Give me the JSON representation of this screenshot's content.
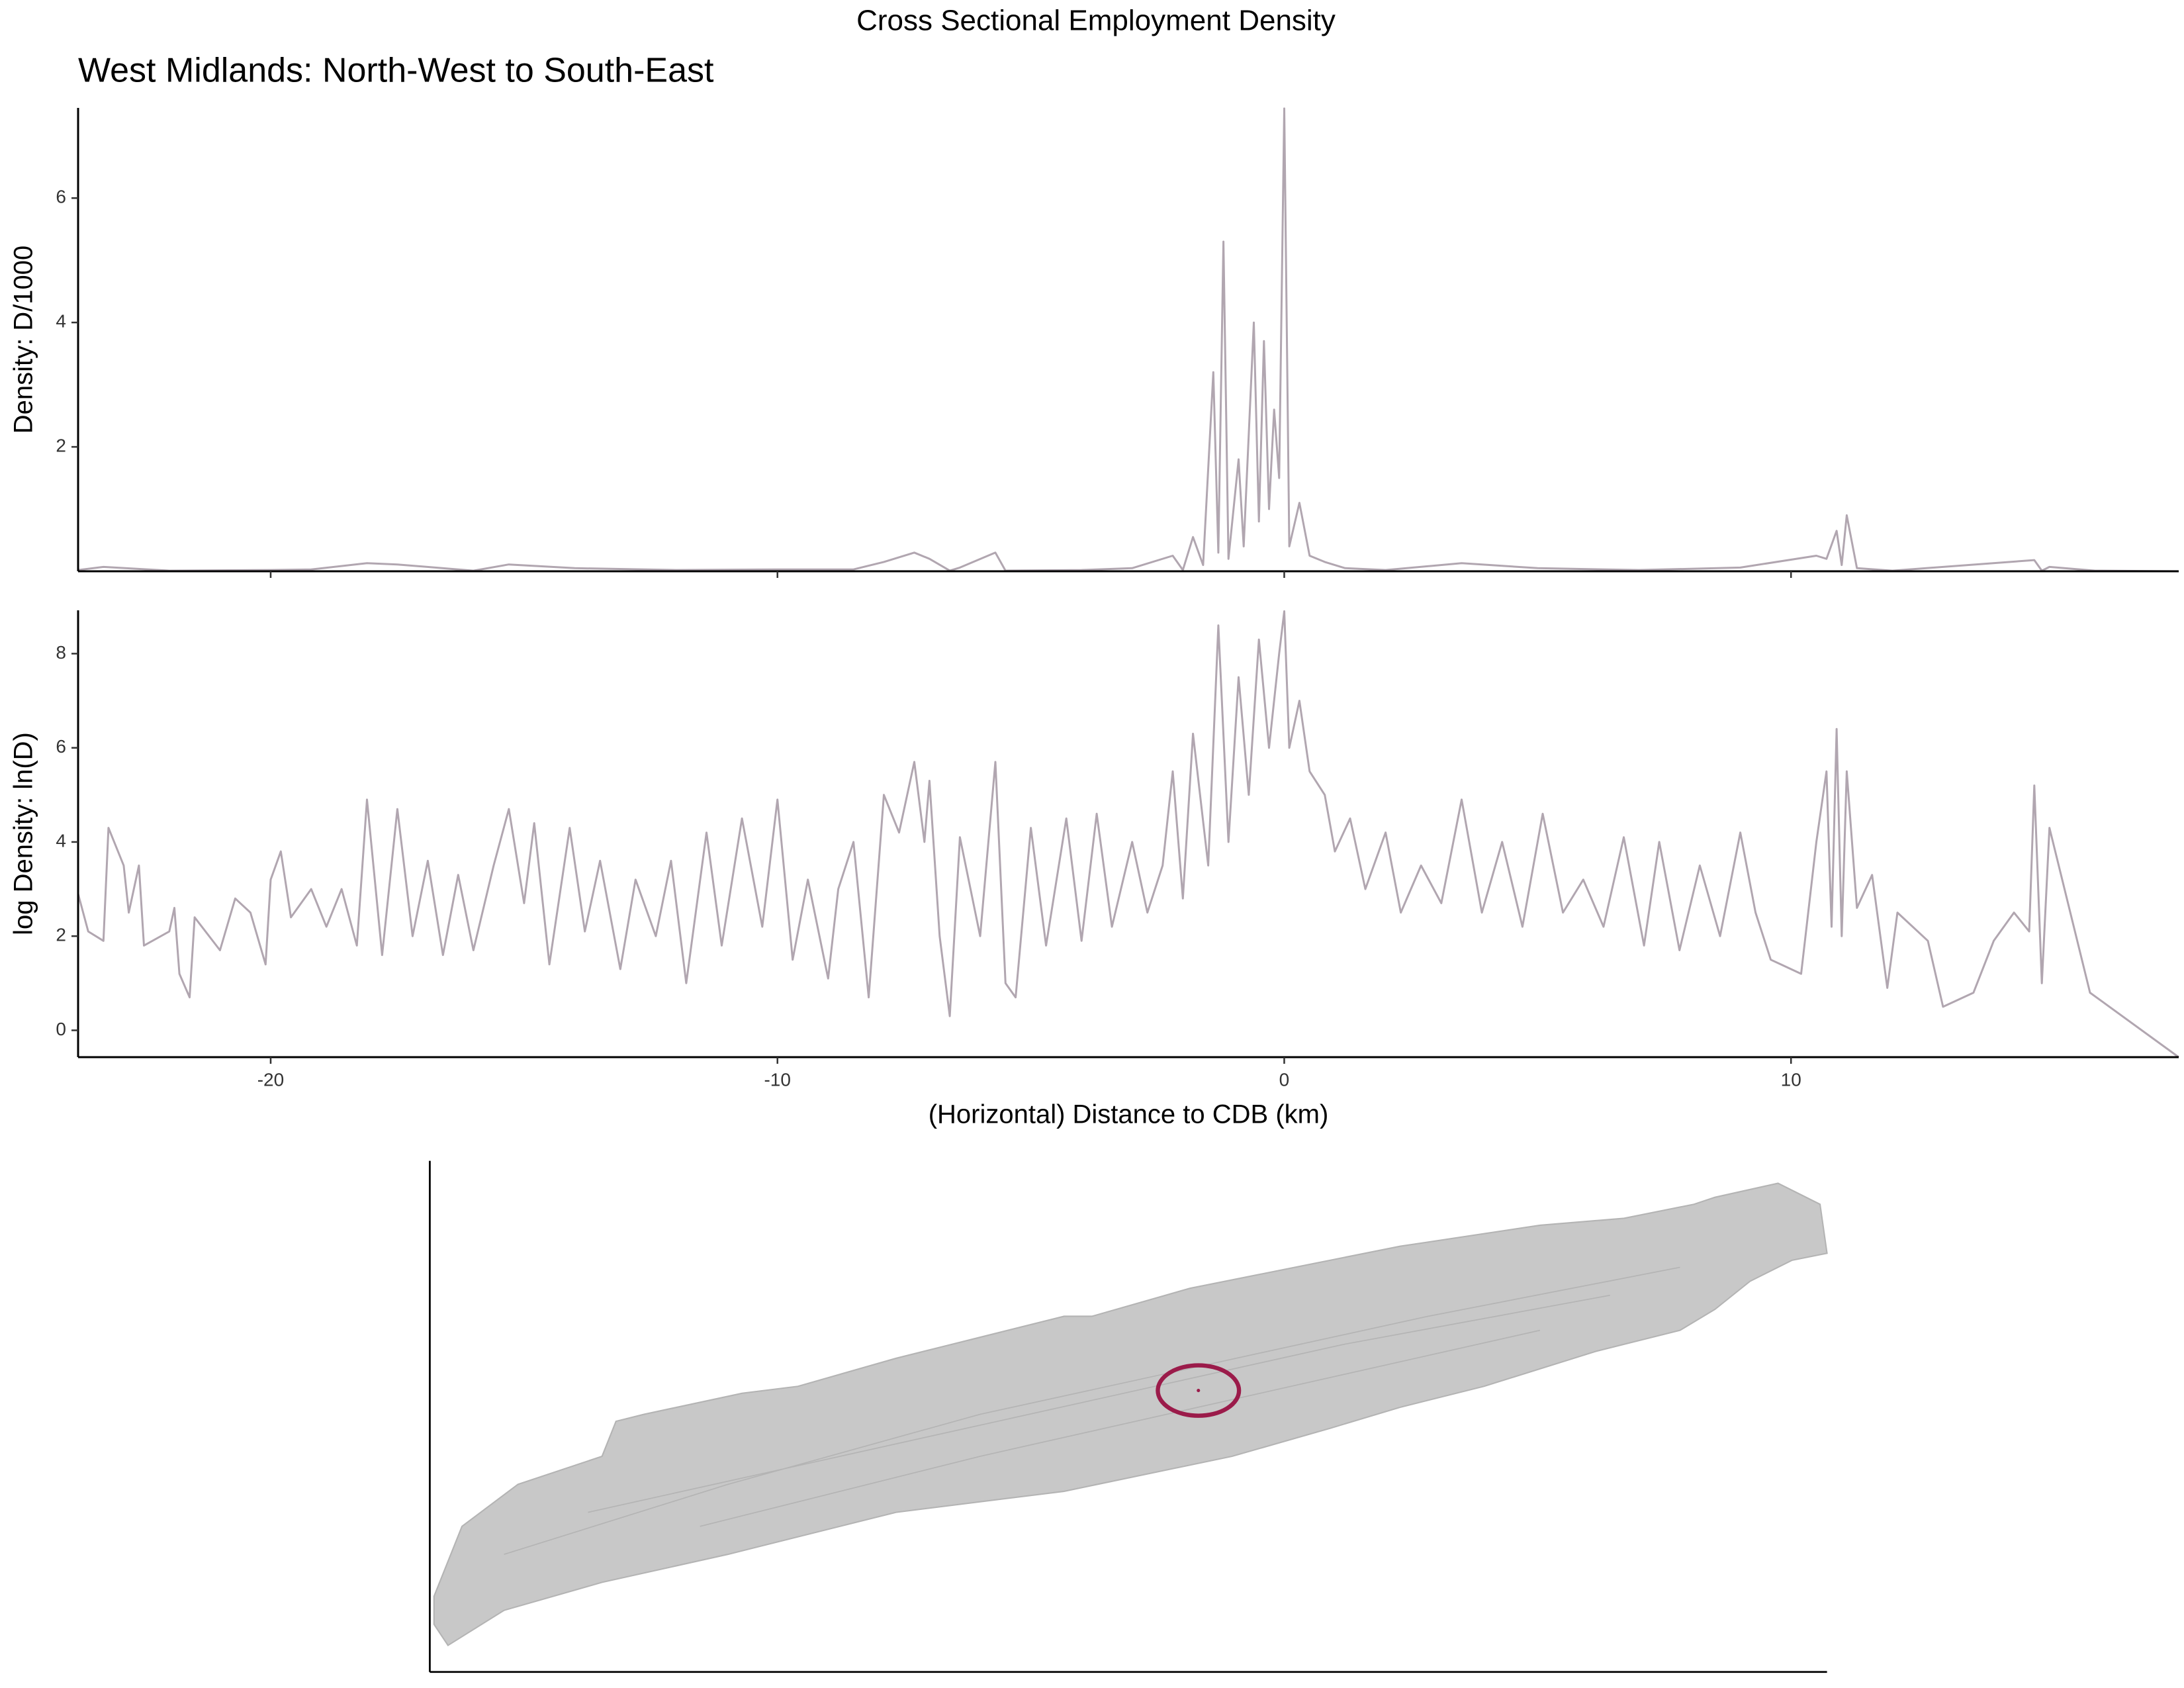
{
  "chart_data": [
    {
      "type": "line",
      "title": "Cross Sectional Employment Density",
      "subtitle": "West Midlands: North-West to South-East",
      "y_label": "Density: D/1000",
      "x": [
        -23.8,
        -23.3,
        -22,
        -20,
        -19.2,
        -18.1,
        -17.5,
        -16,
        -15.3,
        -14,
        -12,
        -10,
        -8.5,
        -7.9,
        -7.3,
        -7.0,
        -6.6,
        -6.4,
        -5.7,
        -5.5,
        -4,
        -3,
        -2.2,
        -2.0,
        -1.8,
        -1.6,
        -1.4,
        -1.3,
        -1.2,
        -1.1,
        -0.9,
        -0.8,
        -0.6,
        -0.5,
        -0.4,
        -0.3,
        -0.2,
        -0.1,
        0.0,
        0.1,
        0.3,
        0.5,
        0.8,
        1.2,
        2,
        3.5,
        5,
        7,
        9,
        10.5,
        10.7,
        10.9,
        11.0,
        11.1,
        11.3,
        12,
        14.8,
        14.95,
        15.1,
        16,
        17.65
      ],
      "values": [
        0.02,
        0.07,
        0.01,
        0.02,
        0.03,
        0.13,
        0.11,
        0.01,
        0.11,
        0.05,
        0.02,
        0.03,
        0.03,
        0.15,
        0.3,
        0.2,
        0.01,
        0.06,
        0.3,
        0.01,
        0.02,
        0.05,
        0.25,
        0.02,
        0.55,
        0.1,
        3.2,
        0.3,
        5.3,
        0.2,
        1.8,
        0.4,
        4.0,
        0.8,
        3.7,
        1.0,
        2.6,
        1.5,
        7.44,
        0.4,
        1.1,
        0.25,
        0.15,
        0.05,
        0.02,
        0.13,
        0.05,
        0.02,
        0.06,
        0.25,
        0.2,
        0.65,
        0.1,
        0.9,
        0.05,
        0.01,
        0.18,
        0.01,
        0.07,
        0.01,
        0
      ],
      "color": "#b1a6b0",
      "xlim": [
        -23.8,
        17.65
      ],
      "ylim": [
        0,
        7.45
      ],
      "xticks": [
        -20,
        -10,
        0,
        10
      ],
      "yticks": [
        2,
        4,
        6
      ]
    },
    {
      "type": "line",
      "y_label": "log Density: ln(D)",
      "x_label": "(Horizontal) Distance to CDB (km)",
      "x": [
        -23.8,
        -23.6,
        -23.3,
        -23.2,
        -22.9,
        -22.8,
        -22.6,
        -22.5,
        -22,
        -21.9,
        -21.8,
        -21.6,
        -21.5,
        -21,
        -20.7,
        -20.4,
        -20.1,
        -20,
        -19.8,
        -19.6,
        -19.2,
        -18.9,
        -18.6,
        -18.3,
        -18.1,
        -17.8,
        -17.5,
        -17.2,
        -16.9,
        -16.6,
        -16.3,
        -16.0,
        -15.6,
        -15.3,
        -15.0,
        -14.8,
        -14.5,
        -14.1,
        -13.8,
        -13.5,
        -13.1,
        -12.8,
        -12.4,
        -12.1,
        -11.8,
        -11.4,
        -11.1,
        -10.7,
        -10.3,
        -10.0,
        -9.7,
        -9.4,
        -9.0,
        -8.8,
        -8.5,
        -8.2,
        -7.9,
        -7.6,
        -7.3,
        -7.1,
        -7.0,
        -6.8,
        -6.6,
        -6.4,
        -6.0,
        -5.7,
        -5.5,
        -5.3,
        -5.0,
        -4.7,
        -4.3,
        -4.0,
        -3.7,
        -3.4,
        -3.0,
        -2.7,
        -2.4,
        -2.2,
        -2.0,
        -1.8,
        -1.5,
        -1.3,
        -1.1,
        -0.9,
        -0.7,
        -0.5,
        -0.3,
        -0.1,
        0.0,
        0.1,
        0.3,
        0.5,
        0.8,
        1.0,
        1.3,
        1.6,
        2.0,
        2.3,
        2.7,
        3.1,
        3.5,
        3.9,
        4.3,
        4.7,
        5.1,
        5.5,
        5.9,
        6.3,
        6.7,
        7.1,
        7.4,
        7.8,
        8.2,
        8.6,
        9.0,
        9.3,
        9.6,
        9.8,
        10.2,
        10.5,
        10.7,
        10.8,
        10.9,
        11.0,
        11.1,
        11.3,
        11.6,
        11.9,
        12.1,
        12.7,
        13.0,
        13.6,
        14.0,
        14.4,
        14.7,
        14.8,
        14.95,
        15.1,
        15.9,
        17.65
      ],
      "values": [
        2.9,
        2.1,
        1.9,
        4.3,
        3.5,
        2.5,
        3.5,
        1.8,
        2.1,
        2.6,
        1.2,
        0.7,
        2.4,
        1.7,
        2.8,
        2.5,
        1.4,
        3.2,
        3.8,
        2.4,
        3.0,
        2.2,
        3.0,
        1.8,
        4.9,
        1.6,
        4.7,
        2.0,
        3.6,
        1.6,
        3.3,
        1.7,
        3.5,
        4.7,
        2.7,
        4.4,
        1.4,
        4.3,
        2.1,
        3.6,
        1.3,
        3.2,
        2.0,
        3.6,
        1.0,
        4.2,
        1.8,
        4.5,
        2.2,
        4.9,
        1.5,
        3.2,
        1.1,
        3.0,
        4.0,
        0.7,
        5.0,
        4.2,
        5.7,
        4.0,
        5.3,
        2.0,
        0.3,
        4.1,
        2.0,
        5.7,
        1.0,
        0.7,
        4.3,
        1.8,
        4.5,
        1.9,
        4.6,
        2.2,
        4.0,
        2.5,
        3.5,
        5.5,
        2.8,
        6.3,
        3.5,
        8.6,
        4.0,
        7.5,
        5.0,
        8.3,
        6.0,
        8.0,
        8.9,
        6.0,
        7.0,
        5.5,
        5.0,
        3.8,
        4.5,
        3.0,
        4.2,
        2.5,
        3.5,
        2.7,
        4.9,
        2.5,
        4.0,
        2.2,
        4.6,
        2.5,
        3.2,
        2.2,
        4.1,
        1.8,
        4.0,
        1.7,
        3.5,
        2.0,
        4.2,
        2.5,
        1.5,
        1.4,
        1.2,
        4.0,
        5.5,
        2.2,
        6.4,
        2.0,
        5.5,
        2.6,
        3.3,
        0.9,
        2.5,
        1.9,
        0.5,
        0.8,
        1.9,
        2.5,
        2.1,
        5.2,
        1.0,
        4.3,
        0.8,
        -0.57
      ],
      "color": "#b1a6b0",
      "xlim": [
        -23.8,
        17.65
      ],
      "ylim": [
        -0.57,
        8.92
      ],
      "xticks": [
        -20,
        -10,
        0,
        10
      ],
      "yticks": [
        0,
        2,
        4,
        6,
        8
      ]
    }
  ]
}
